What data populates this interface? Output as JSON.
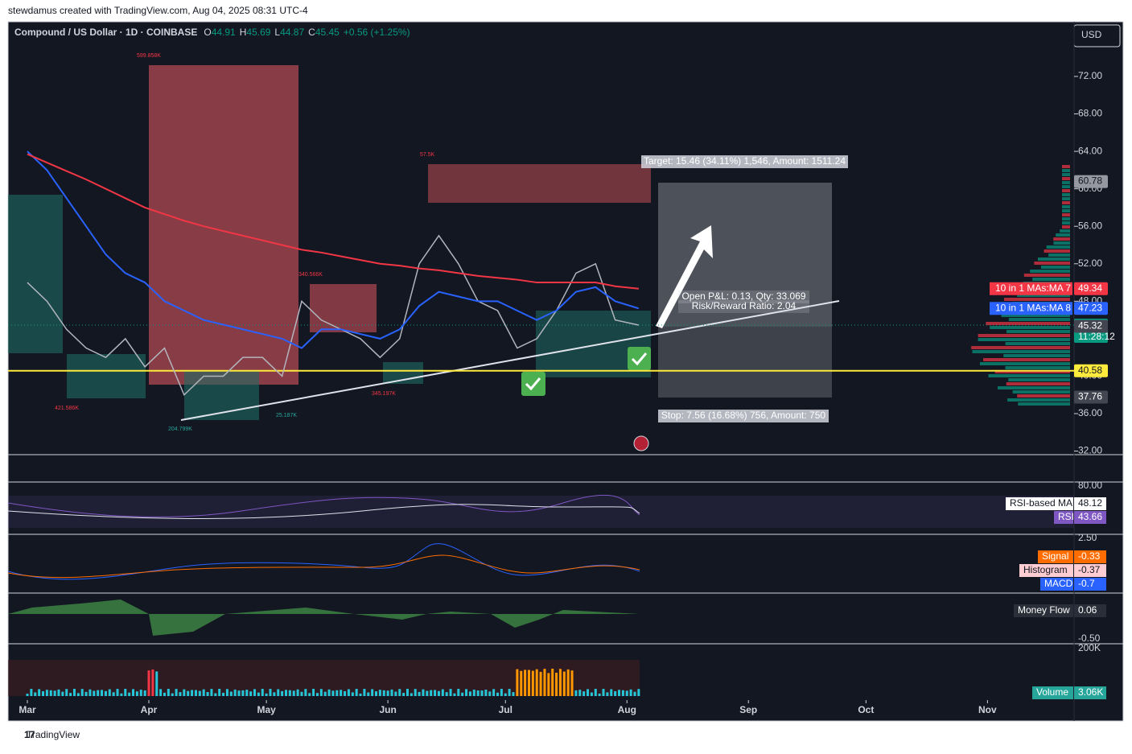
{
  "header": {
    "credit": "stewdamus created with TradingView.com, Aug 04, 2025 08:31 UTC-4",
    "footer": "TradingView"
  },
  "chart_data": {
    "type": "line",
    "title": "Compound / US Dollar · 1D · COINBASE",
    "ohlc": [
      {
        "label": "O",
        "value": 44.91
      },
      {
        "label": "H",
        "value": 45.69
      },
      {
        "label": "L",
        "value": 44.87
      },
      {
        "label": "C",
        "value": 45.45
      }
    ],
    "change": "+0.56 (+1.25%)",
    "currency": "USD",
    "x": [
      0,
      5,
      10,
      15,
      20,
      25,
      30,
      35,
      40,
      45,
      50,
      55,
      60,
      65,
      70,
      75,
      80,
      85,
      90,
      95,
      100,
      105,
      110,
      115,
      120,
      125,
      130,
      135,
      140,
      145,
      150,
      156
    ],
    "xlim": [
      -4.93,
      267.1
    ],
    "xticks": [
      {
        "value": 0,
        "label": "Mar"
      },
      {
        "value": 31,
        "label": "Apr"
      },
      {
        "value": 61,
        "label": "May"
      },
      {
        "value": 92,
        "label": "Jun"
      },
      {
        "value": 122,
        "label": "Jul"
      },
      {
        "value": 153,
        "label": "Aug"
      },
      {
        "value": 184,
        "label": "Sep"
      },
      {
        "value": 214,
        "label": "Oct"
      },
      {
        "value": 245,
        "label": "Nov"
      }
    ],
    "ylim": [
      31.62,
      77.84
    ],
    "yticks": [
      {
        "value": 32,
        "label": "32.00"
      },
      {
        "value": 36,
        "label": "36.00"
      },
      {
        "value": 40,
        "label": "40.00"
      },
      {
        "value": 44,
        "label": "44.00"
      },
      {
        "value": 48,
        "label": "48.00"
      },
      {
        "value": 52,
        "label": "52.00"
      },
      {
        "value": 56,
        "label": "56.00"
      },
      {
        "value": 60,
        "label": "60.00"
      },
      {
        "value": 64,
        "label": "64.00"
      },
      {
        "value": 68,
        "label": "68.00"
      },
      {
        "value": 72,
        "label": "72.00"
      }
    ],
    "series": [
      {
        "color": "#b2b5be",
        "values": [
          50,
          48,
          45,
          43,
          42,
          44,
          41,
          43,
          38,
          40,
          40,
          42,
          42,
          40,
          48,
          46,
          45,
          44,
          42,
          44,
          52,
          55,
          52,
          48,
          47,
          43,
          44,
          47,
          51,
          52,
          46,
          45.45
        ]
      },
      {
        "name": "10 in 1 MAs:MA 8",
        "color": "#2962ff",
        "values": [
          64,
          62,
          59,
          56,
          53,
          51,
          50,
          48,
          47,
          46,
          45.5,
          45,
          44.5,
          44,
          43,
          45,
          45,
          44.5,
          44,
          45,
          47.5,
          49,
          48.5,
          48,
          48,
          47,
          46,
          47,
          49,
          49.5,
          48,
          47.23
        ]
      },
      {
        "name": "10 in 1 MAs:MA 7",
        "color": "#f23645",
        "values": [
          63.7,
          62.8,
          61.9,
          61,
          60,
          59,
          58,
          57.3,
          56.6,
          56,
          55.5,
          55,
          54.5,
          54,
          53.5,
          53.2,
          52.8,
          52.4,
          52,
          51.8,
          51.5,
          51.3,
          51,
          50.7,
          50.5,
          50.3,
          50,
          50,
          50,
          50,
          49.6,
          49.34
        ]
      }
    ],
    "price_tags": [
      {
        "value": 60.78,
        "color": "#9598a1"
      },
      {
        "name": "10 in 1 MAs:MA 7",
        "value": 49.34,
        "color": "#f23645"
      },
      {
        "name": "10 in 1 MAs:MA 8",
        "value": 47.23,
        "color": "#2962ff"
      },
      {
        "value": 45.45,
        "sub": "11:28:12",
        "color": "#089981"
      },
      {
        "value": 45.32,
        "color": "#434651"
      },
      {
        "value": 40.58,
        "color": "#ffeb3b"
      },
      {
        "value": 37.76,
        "color": "#434651"
      }
    ],
    "position": {
      "target": "Target: 15.46 (34.11%) 1,546, Amount: 1511.24",
      "pnl": "Open P&L: 0.13, Qty: 33.069",
      "rr": "Risk/Reward Ratio: 2.04",
      "stop": "Stop: 7.56 (16.68%) 756, Amount: 750"
    },
    "annotations": [
      "599.858K",
      "57.5K",
      "340.566K",
      "421.586K",
      "204.799K",
      "25.187K",
      "345.197K"
    ],
    "rsi": {
      "tick": {
        "value": 80,
        "label": "80.00"
      },
      "lines": [
        {
          "name": "RSI-based MA",
          "value": 48.12
        },
        {
          "name": "RSI",
          "value": 43.66
        }
      ]
    },
    "macd": {
      "tick": {
        "value": 2.5,
        "label": "2.50"
      },
      "lines": [
        {
          "name": "Signal",
          "value": -0.33
        },
        {
          "name": "Histogram",
          "value": -0.37
        },
        {
          "name": "MACD",
          "value": -0.7
        }
      ]
    },
    "money_flow": {
      "tick": {
        "value": -0.5,
        "label": "-0.50"
      },
      "name": "Money Flow",
      "value": 0.06
    },
    "volume": {
      "tick": {
        "value": 200000,
        "label": "200K"
      },
      "name": "Volume",
      "value": 3060,
      "label": "3.06K"
    }
  }
}
